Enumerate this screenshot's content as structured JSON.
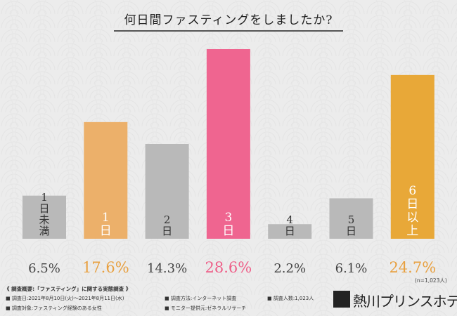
{
  "chart_data": {
    "type": "bar",
    "title": "何日間ファスティングをしましたか?",
    "categories": [
      "1日未満",
      "1日",
      "2日",
      "3日",
      "4日",
      "5日",
      "6日以上"
    ],
    "values": [
      6.5,
      17.6,
      14.3,
      28.6,
      2.2,
      6.1,
      24.7
    ],
    "value_labels": [
      "6.5%",
      "17.6%",
      "14.3%",
      "28.6%",
      "2.2%",
      "6.1%",
      "24.7%"
    ],
    "bar_colors": [
      "#b9b9b9",
      "#ecb06a",
      "#b9b9b9",
      "#ef6590",
      "#b9b9b9",
      "#b9b9b9",
      "#e8a838"
    ],
    "label_colors": [
      "#444444",
      "#e8a040",
      "#444444",
      "#ee5e88",
      "#444444",
      "#444444",
      "#e8a040"
    ],
    "ylim": [
      0,
      28.6
    ],
    "grid": false,
    "legend": "none"
  },
  "sample_note": "(n=1,023人)",
  "footer": {
    "heading": "《 調査概要:「ファスティング」に関する実態調査 》",
    "items": [
      "■ 調査日:2021年8月10日(火)〜2021年8月11日(水)",
      "■ 調査方法:インターネット調査",
      "■ 調査人数:1,023人",
      "■ 調査対象:ファスティング経験のある女性",
      "■ モニター提供元:ゼネラルリサーチ"
    ],
    "logo_text": "熱川プリンスホテル"
  },
  "colors": {
    "background": "#ececec",
    "text": "#222222"
  }
}
